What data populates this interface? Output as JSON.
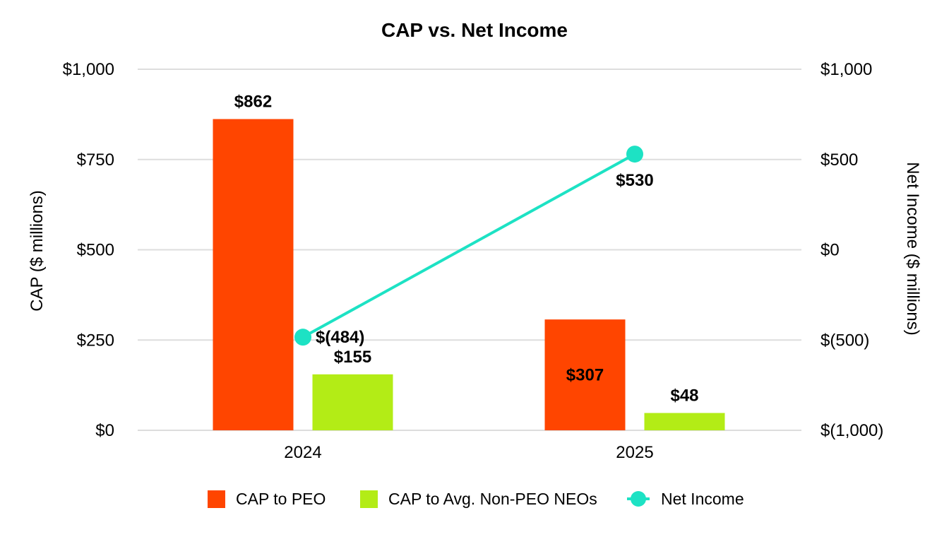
{
  "chart_data": {
    "type": "bar",
    "title": "CAP vs. Net Income",
    "categories": [
      "2024",
      "2025"
    ],
    "ylabel": "CAP ($ millions)",
    "y2label": "Net Income ($ millions)",
    "ylim": [
      0,
      1000
    ],
    "y2lim": [
      -1000,
      1000
    ],
    "yticks": [
      0,
      250,
      500,
      750,
      1000
    ],
    "yticklabels": [
      "$0",
      "$250",
      "$500",
      "$750",
      "$1,000"
    ],
    "y2ticks": [
      -1000,
      -500,
      0,
      500,
      1000
    ],
    "y2ticklabels": [
      "$(1,000)",
      "$(500)",
      "$0",
      "$500",
      "$1,000"
    ],
    "grid": true,
    "legend_position": "bottom",
    "series": [
      {
        "name": "CAP to PEO",
        "type": "bar",
        "axis": "left",
        "color": "#ff4500",
        "values": [
          862,
          307
        ],
        "labels": [
          "$862",
          "$307"
        ]
      },
      {
        "name": "CAP to Avg. Non-PEO NEOs",
        "type": "bar",
        "axis": "left",
        "color": "#b3ec16",
        "values": [
          155,
          48
        ],
        "labels": [
          "$155",
          "$48"
        ]
      },
      {
        "name": "Net Income",
        "type": "line",
        "axis": "right",
        "color": "#1de2c4",
        "values": [
          -484,
          530
        ],
        "labels": [
          "$(484)",
          "$530"
        ]
      }
    ]
  }
}
